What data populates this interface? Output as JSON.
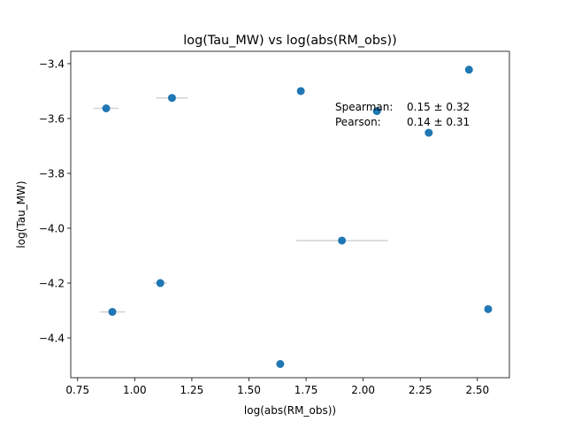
{
  "chart_data": {
    "type": "scatter",
    "title": "log(Tau_MW) vs log(abs(RM_obs))",
    "xlabel": "log(abs(RM_obs))",
    "ylabel": "log(Tau_MW)",
    "xlim": [
      0.72,
      2.64
    ],
    "ylim": [
      -4.545,
      -3.355
    ],
    "xticks": [
      0.75,
      1.0,
      1.25,
      1.5,
      1.75,
      2.0,
      2.25,
      2.5
    ],
    "xtick_labels": [
      "0.75",
      "1.00",
      "1.25",
      "1.50",
      "1.75",
      "2.00",
      "2.25",
      "2.50"
    ],
    "yticks": [
      -4.4,
      -4.2,
      -4.0,
      -3.8,
      -3.6,
      -3.4
    ],
    "ytick_labels": [
      "−4.4",
      "−4.2",
      "−4.0",
      "−3.8",
      "−3.6",
      "−3.4"
    ],
    "grid": false,
    "marker_color": "#1f77b4",
    "errorbar_color": "#d3d3d3",
    "points": [
      {
        "x": 0.875,
        "y": -3.563,
        "xerr": 0.055
      },
      {
        "x": 0.902,
        "y": -4.305,
        "xerr": 0.055
      },
      {
        "x": 1.112,
        "y": -4.2,
        "xerr": 0.03
      },
      {
        "x": 1.163,
        "y": -3.525,
        "xerr": 0.07
      },
      {
        "x": 1.637,
        "y": -4.495,
        "xerr": 0.0
      },
      {
        "x": 1.727,
        "y": -3.5,
        "xerr": 0.0
      },
      {
        "x": 1.907,
        "y": -4.045,
        "xerr": 0.2
      },
      {
        "x": 2.06,
        "y": -3.573,
        "xerr": 0.0
      },
      {
        "x": 2.287,
        "y": -3.652,
        "xerr": 0.0
      },
      {
        "x": 2.463,
        "y": -3.422,
        "xerr": 0.0
      },
      {
        "x": 2.547,
        "y": -4.295,
        "xerr": 0.0
      }
    ],
    "annotations": [
      {
        "label": "Spearman:",
        "value": "0.15 ± 0.32"
      },
      {
        "label": "Pearson:",
        "value": "0.14 ± 0.31"
      }
    ]
  }
}
